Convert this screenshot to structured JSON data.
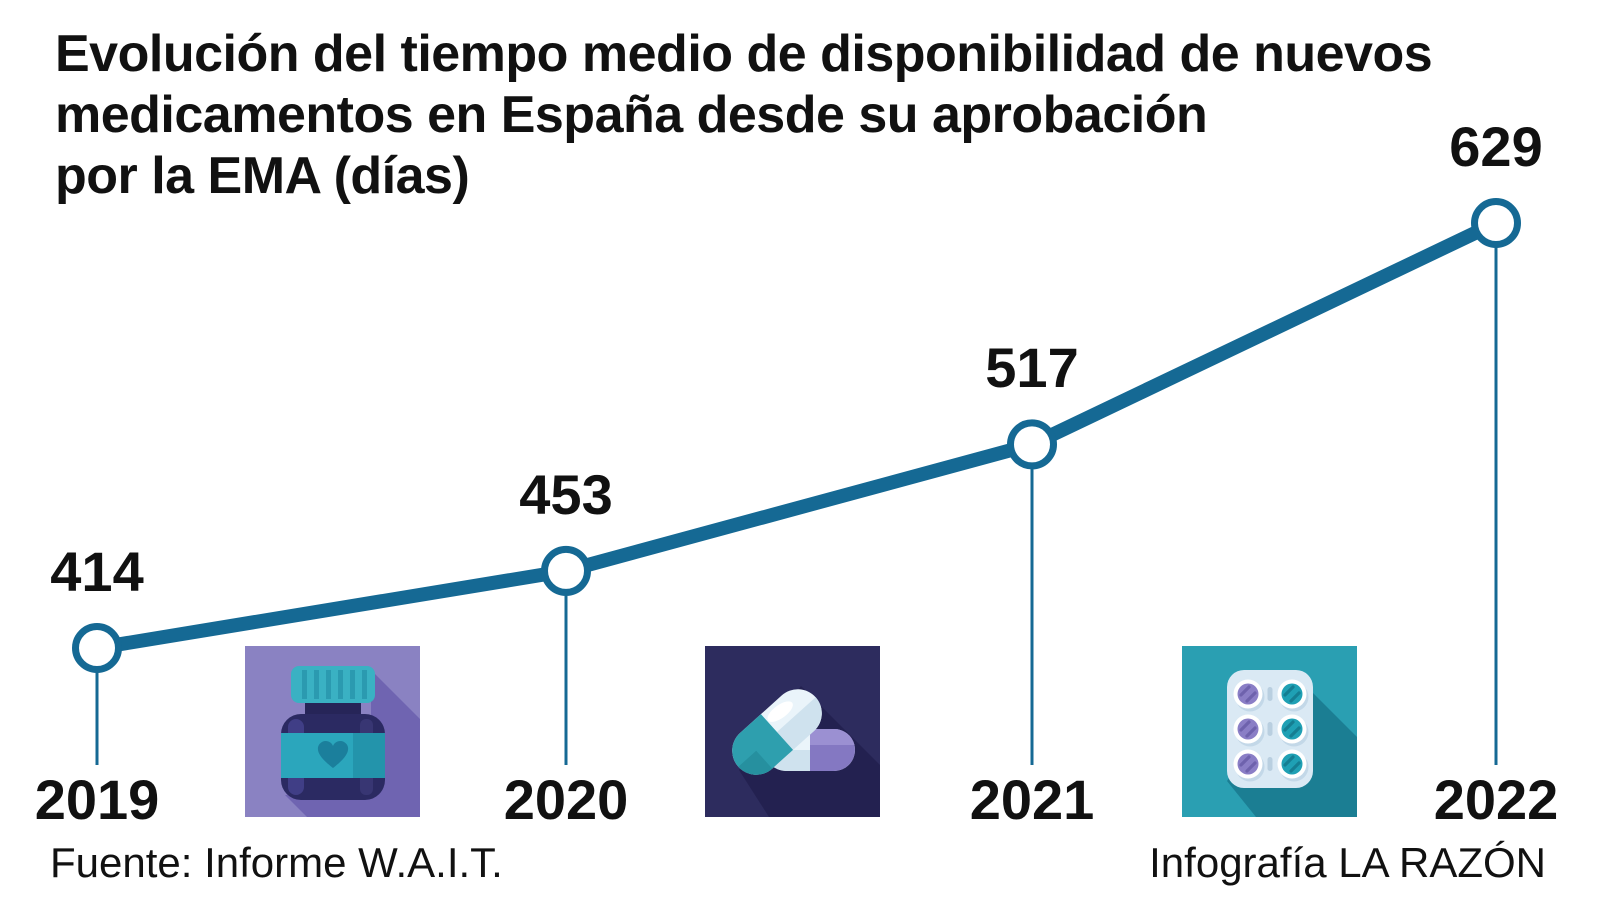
{
  "title": {
    "lines": [
      "Evolución del tiempo medio de disponibilidad de nuevos",
      "medicamentos en España desde su aprobación",
      "por la EMA (días)"
    ]
  },
  "chart_data": {
    "type": "line",
    "categories": [
      "2019",
      "2020",
      "2021",
      "2022"
    ],
    "values": [
      414,
      453,
      517,
      629
    ],
    "title": "Evolución del tiempo medio de disponibilidad de nuevos medicamentos en España desde su aprobación por la EMA (días)",
    "xlabel": "",
    "ylabel": "días",
    "ylim": [
      414,
      629
    ],
    "grid": false,
    "legend": false,
    "marker": "open-circle",
    "line_color": "#156994",
    "data_labels": true
  },
  "footer": {
    "source": "Fuente: Informe W.A.I.T.",
    "credit": "Infografía LA RAZÓN"
  },
  "icons": [
    {
      "name": "pill-bottle-icon",
      "bg": "#8a82c2"
    },
    {
      "name": "capsules-icon",
      "bg": "#2d2c5e"
    },
    {
      "name": "blister-pack-icon",
      "bg": "#2a9fb2"
    }
  ],
  "colors": {
    "accent": "#156994",
    "text": "#111111"
  }
}
